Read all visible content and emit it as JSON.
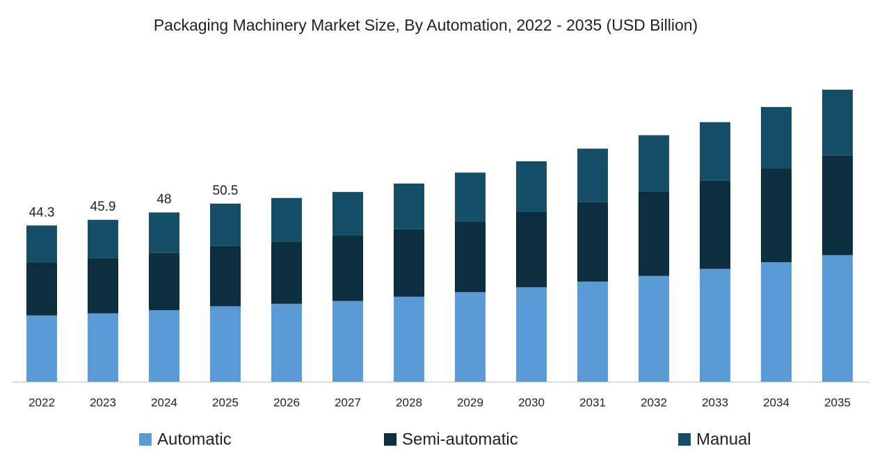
{
  "chart_data": {
    "type": "stacked-bar",
    "title": "Packaging Machinery Market Size, By Automation, 2022 - 2035 (USD Billion)",
    "categories": [
      "2022",
      "2023",
      "2024",
      "2025",
      "2026",
      "2027",
      "2028",
      "2029",
      "2030",
      "2031",
      "2032",
      "2033",
      "2034",
      "2035"
    ],
    "series": [
      {
        "name": "Automatic",
        "color": "#5b9bd5",
        "values": [
          18.8,
          19.4,
          20.3,
          21.4,
          22.1,
          22.9,
          24.1,
          25.4,
          26.8,
          28.4,
          30.0,
          32.0,
          33.9,
          35.9
        ]
      },
      {
        "name": "Semi-automatic",
        "color": "#0d2e3f",
        "values": [
          15.0,
          15.5,
          16.2,
          17.1,
          17.6,
          18.5,
          19.1,
          20.1,
          21.3,
          22.5,
          23.9,
          25.0,
          26.6,
          28.2
        ]
      },
      {
        "name": "Manual",
        "color": "#154e67",
        "values": [
          10.5,
          11.0,
          11.5,
          12.0,
          12.4,
          12.4,
          13.0,
          13.8,
          14.4,
          15.2,
          16.0,
          16.6,
          17.4,
          18.7
        ]
      }
    ],
    "totals": [
      44.3,
      45.9,
      48,
      50.5,
      null,
      null,
      null,
      null,
      null,
      null,
      null,
      null,
      null,
      null
    ]
  }
}
